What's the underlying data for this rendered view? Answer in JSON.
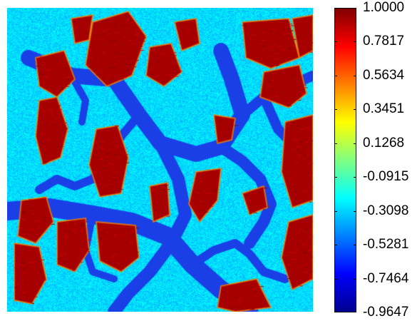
{
  "colorbar": {
    "ticks": [
      "1.0000",
      "0.7817",
      "0.5634",
      "0.3451",
      "0.1268",
      "-0.0915",
      "-0.3098",
      "-0.5281",
      "-0.7464",
      "-0.9647"
    ],
    "min": -0.9647,
    "max": 1.0
  },
  "colors": {
    "jet_stops": [
      "#00008f",
      "#0000ff",
      "#0080ff",
      "#00ffff",
      "#80ff80",
      "#ffff00",
      "#ff8000",
      "#ff0000",
      "#800000"
    ],
    "background_phase": "#32c8ef",
    "channel_phase": "#1a40e0",
    "grain_phase": "#a80000"
  }
}
